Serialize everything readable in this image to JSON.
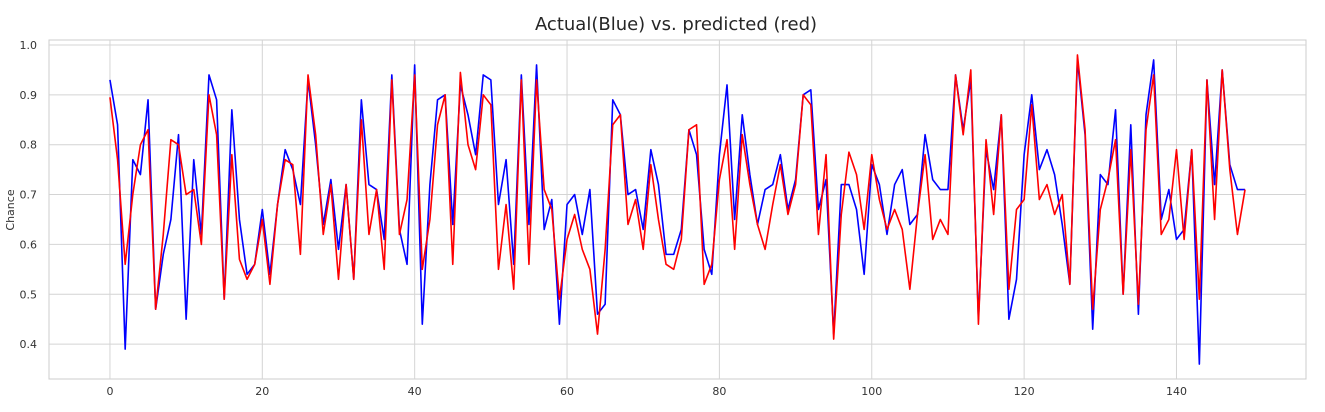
{
  "chart_data": {
    "type": "line",
    "title": "Actual(Blue) vs. predicted (red)",
    "xlabel": "",
    "ylabel": "Chance",
    "xlim": [
      -8,
      157
    ],
    "ylim": [
      0.33,
      1.01
    ],
    "xticks": [
      0,
      20,
      40,
      60,
      80,
      100,
      120,
      140
    ],
    "yticks": [
      0.4,
      0.5,
      0.6,
      0.7,
      0.8,
      0.9,
      1.0
    ],
    "ytick_labels": [
      "0.4",
      "0.5",
      "0.6",
      "0.7",
      "0.8",
      "0.9",
      "1.0"
    ],
    "grid": true,
    "series": [
      {
        "color": "#0000ff",
        "values": [
          0.93,
          0.84,
          0.39,
          0.77,
          0.74,
          0.89,
          0.47,
          0.58,
          0.65,
          0.82,
          0.45,
          0.77,
          0.62,
          0.94,
          0.89,
          0.49,
          0.87,
          0.65,
          0.54,
          0.56,
          0.67,
          0.54,
          0.68,
          0.79,
          0.75,
          0.68,
          0.93,
          0.8,
          0.64,
          0.73,
          0.59,
          0.72,
          0.53,
          0.89,
          0.72,
          0.71,
          0.61,
          0.94,
          0.63,
          0.56,
          0.96,
          0.44,
          0.72,
          0.89,
          0.9,
          0.64,
          0.92,
          0.86,
          0.78,
          0.94,
          0.93,
          0.68,
          0.77,
          0.56,
          0.94,
          0.64,
          0.96,
          0.63,
          0.69,
          0.44,
          0.68,
          0.7,
          0.62,
          0.71,
          0.46,
          0.48,
          0.89,
          0.86,
          0.7,
          0.71,
          0.63,
          0.79,
          0.72,
          0.58,
          0.58,
          0.63,
          0.83,
          0.78,
          0.59,
          0.54,
          0.78,
          0.92,
          0.65,
          0.86,
          0.74,
          0.64,
          0.71,
          0.72,
          0.78,
          0.67,
          0.73,
          0.9,
          0.91,
          0.67,
          0.73,
          0.42,
          0.72,
          0.72,
          0.67,
          0.54,
          0.76,
          0.72,
          0.62,
          0.72,
          0.75,
          0.64,
          0.66,
          0.82,
          0.73,
          0.71,
          0.71,
          0.94,
          0.83,
          0.93,
          0.45,
          0.79,
          0.71,
          0.86,
          0.45,
          0.53,
          0.78,
          0.9,
          0.75,
          0.79,
          0.74,
          0.64,
          0.52,
          0.97,
          0.82,
          0.43,
          0.74,
          0.72,
          0.87,
          0.5,
          0.84,
          0.46,
          0.86,
          0.97,
          0.65,
          0.71,
          0.61,
          0.63,
          0.79,
          0.36,
          0.93,
          0.72,
          0.95,
          0.76,
          0.71,
          0.71
        ]
      },
      {
        "color": "#ff0000",
        "values": [
          0.895,
          0.77,
          0.56,
          0.7,
          0.8,
          0.83,
          0.47,
          0.62,
          0.81,
          0.8,
          0.7,
          0.71,
          0.6,
          0.9,
          0.82,
          0.49,
          0.78,
          0.57,
          0.53,
          0.56,
          0.65,
          0.52,
          0.68,
          0.77,
          0.76,
          0.58,
          0.94,
          0.82,
          0.62,
          0.72,
          0.53,
          0.72,
          0.53,
          0.85,
          0.62,
          0.71,
          0.55,
          0.93,
          0.62,
          0.69,
          0.94,
          0.55,
          0.65,
          0.84,
          0.9,
          0.56,
          0.945,
          0.8,
          0.75,
          0.9,
          0.88,
          0.55,
          0.68,
          0.51,
          0.93,
          0.56,
          0.93,
          0.71,
          0.67,
          0.49,
          0.61,
          0.66,
          0.59,
          0.55,
          0.42,
          0.59,
          0.84,
          0.86,
          0.64,
          0.69,
          0.59,
          0.76,
          0.65,
          0.56,
          0.55,
          0.61,
          0.83,
          0.84,
          0.52,
          0.56,
          0.73,
          0.81,
          0.59,
          0.82,
          0.72,
          0.64,
          0.59,
          0.68,
          0.76,
          0.66,
          0.72,
          0.9,
          0.88,
          0.62,
          0.78,
          0.41,
          0.66,
          0.785,
          0.74,
          0.63,
          0.78,
          0.69,
          0.63,
          0.67,
          0.63,
          0.51,
          0.66,
          0.78,
          0.61,
          0.65,
          0.62,
          0.94,
          0.82,
          0.95,
          0.44,
          0.81,
          0.66,
          0.86,
          0.51,
          0.67,
          0.69,
          0.88,
          0.69,
          0.72,
          0.66,
          0.7,
          0.52,
          0.98,
          0.83,
          0.47,
          0.67,
          0.73,
          0.81,
          0.5,
          0.79,
          0.48,
          0.83,
          0.94,
          0.62,
          0.65,
          0.79,
          0.61,
          0.79,
          0.49,
          0.93,
          0.65,
          0.95,
          0.75,
          0.62,
          0.71
        ]
      }
    ]
  }
}
